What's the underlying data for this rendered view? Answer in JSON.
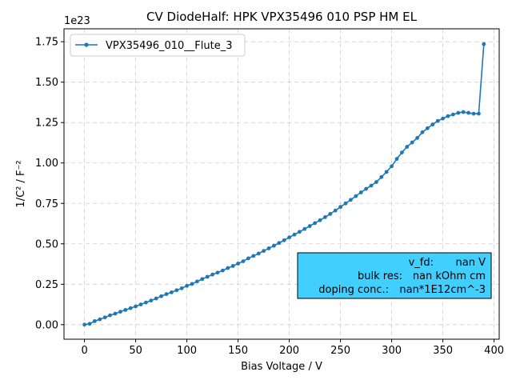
{
  "chart_data": {
    "type": "line",
    "title": "CV DiodeHalf: HPK VPX35496 010 PSP HM EL",
    "xlabel": "Bias Voltage / V",
    "ylabel": "1/C² / F⁻²",
    "y_offset_text": "1e23",
    "xlim": [
      -20,
      405
    ],
    "ylim": [
      -0.09,
      1.83
    ],
    "x_ticks": [
      0,
      50,
      100,
      150,
      200,
      250,
      300,
      350,
      400
    ],
    "x_tick_labels": [
      "0",
      "50",
      "100",
      "150",
      "200",
      "250",
      "300",
      "350",
      "400"
    ],
    "y_ticks": [
      0,
      0.25,
      0.5,
      0.75,
      1.0,
      1.25,
      1.5,
      1.75
    ],
    "y_tick_labels": [
      "0.00",
      "0.25",
      "0.50",
      "0.75",
      "1.00",
      "1.25",
      "1.50",
      "1.75"
    ],
    "grid": true,
    "legend_position": "top-left",
    "series": [
      {
        "name": "VPX35496_010__Flute_3",
        "color": "#1f77b4",
        "x": [
          0,
          5,
          10,
          15,
          20,
          25,
          30,
          35,
          40,
          45,
          50,
          55,
          60,
          65,
          70,
          75,
          80,
          85,
          90,
          95,
          100,
          105,
          110,
          115,
          120,
          125,
          130,
          135,
          140,
          145,
          150,
          155,
          160,
          165,
          170,
          175,
          180,
          185,
          190,
          195,
          200,
          205,
          210,
          215,
          220,
          225,
          230,
          235,
          240,
          245,
          250,
          255,
          260,
          265,
          270,
          275,
          280,
          285,
          290,
          295,
          300,
          305,
          310,
          315,
          320,
          325,
          330,
          335,
          340,
          345,
          350,
          355,
          360,
          365,
          370,
          375,
          380,
          385,
          390
        ],
        "y": [
          0.0,
          0.005,
          0.022,
          0.033,
          0.045,
          0.058,
          0.068,
          0.08,
          0.091,
          0.102,
          0.113,
          0.125,
          0.137,
          0.149,
          0.162,
          0.176,
          0.189,
          0.2,
          0.213,
          0.225,
          0.24,
          0.252,
          0.267,
          0.282,
          0.296,
          0.31,
          0.322,
          0.335,
          0.35,
          0.363,
          0.378,
          0.392,
          0.41,
          0.425,
          0.44,
          0.456,
          0.472,
          0.488,
          0.505,
          0.522,
          0.54,
          0.557,
          0.574,
          0.592,
          0.61,
          0.628,
          0.646,
          0.665,
          0.685,
          0.706,
          0.728,
          0.75,
          0.772,
          0.795,
          0.818,
          0.84,
          0.86,
          0.882,
          0.913,
          0.945,
          0.98,
          1.025,
          1.065,
          1.1,
          1.127,
          1.155,
          1.19,
          1.215,
          1.238,
          1.26,
          1.275,
          1.29,
          1.3,
          1.31,
          1.315,
          1.31,
          1.305,
          1.305,
          1.735
        ]
      }
    ],
    "annotation_box": {
      "lines": [
        {
          "label": "v_fd:",
          "value": "nan V"
        },
        {
          "label": "bulk res:",
          "value": "nan kOhm cm"
        },
        {
          "label": "doping conc.:",
          "value": "nan*1E12cm^-3"
        }
      ],
      "background": "#40cfff"
    }
  }
}
